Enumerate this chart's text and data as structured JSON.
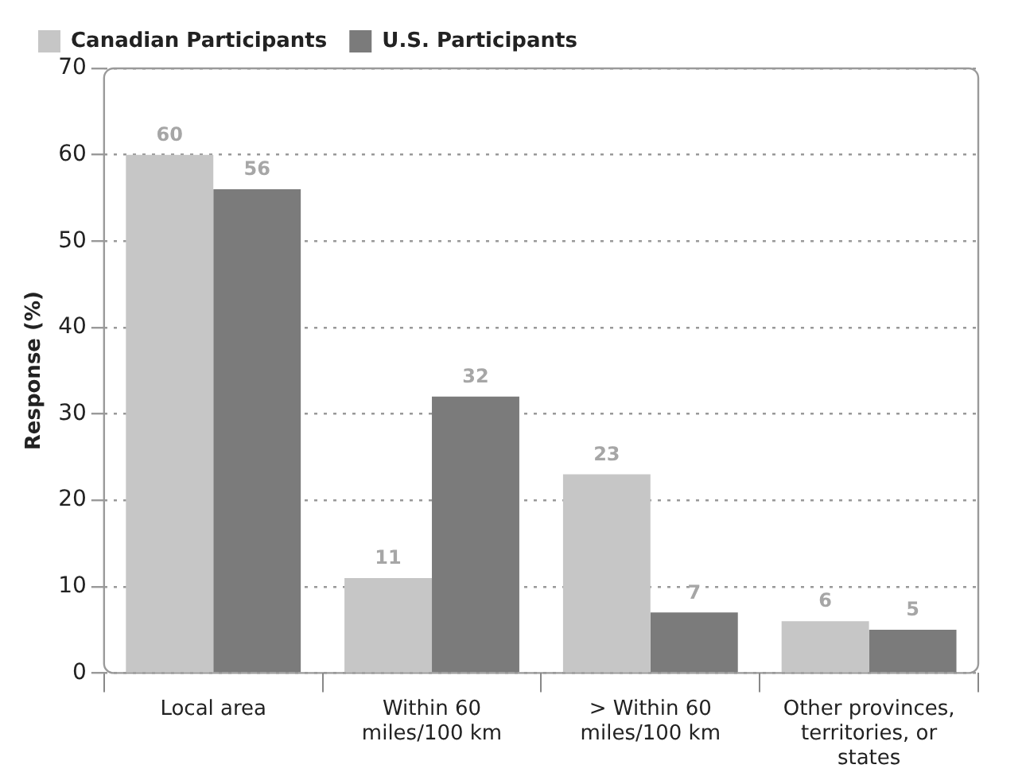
{
  "chart_data": {
    "type": "bar",
    "ylabel": "Response (%)",
    "categories": [
      "Local area",
      "Within 60 miles/100 km",
      "> Within 60 miles/100 km",
      "Other provinces, territories, or states"
    ],
    "series": [
      {
        "name": "Canadian Participants",
        "color": "#c6c6c6",
        "values": [
          60,
          11,
          23,
          6
        ]
      },
      {
        "name": "U.S. Participants",
        "color": "#7b7b7b",
        "values": [
          56,
          32,
          7,
          5
        ]
      }
    ],
    "ylim": [
      0,
      70
    ],
    "yticks": [
      0,
      10,
      20,
      30,
      40,
      50,
      60,
      70
    ],
    "grid": "y",
    "legend": "top left",
    "data_labels": true
  }
}
